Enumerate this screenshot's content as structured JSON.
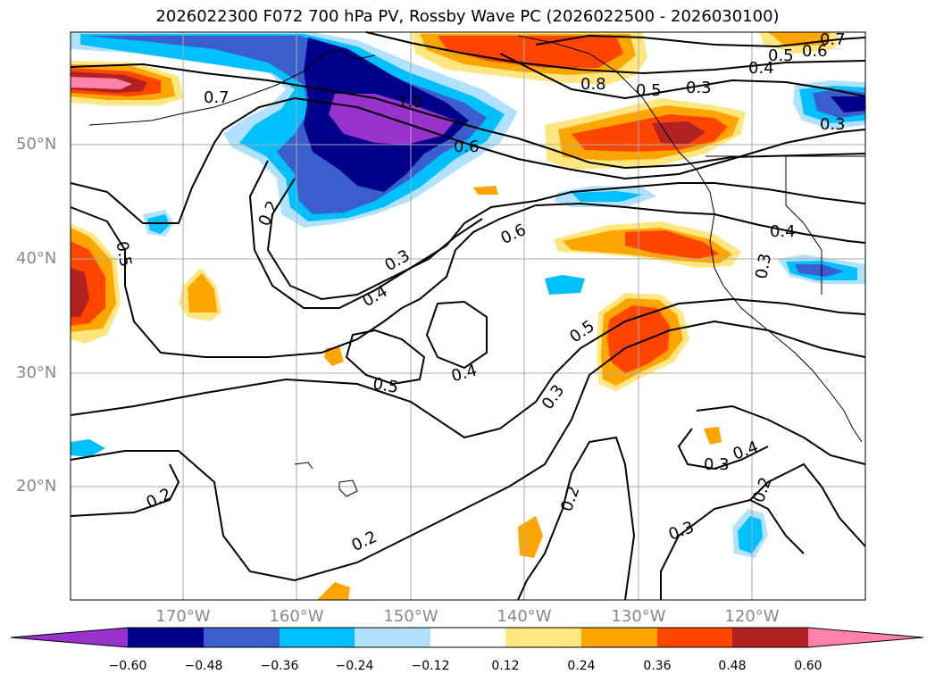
{
  "title": "2026022300 F072 700 hPa PV, Rossby Wave PC (2026022500 - 2026030100)",
  "lat_labels": [
    "50°N",
    "40°N",
    "30°N",
    "20°N"
  ],
  "lon_labels": [
    "170°W",
    "160°W",
    "150°W",
    "140°W",
    "130°W",
    "120°W"
  ],
  "contour_labels": [
    "0.7",
    "1.0",
    "0.6",
    "0.8",
    "0.5",
    "0.7",
    "0.6",
    "0.5",
    "0.4",
    "0.3",
    "0.3",
    "0.5",
    "0.2",
    "0.3",
    "0.4",
    "0.6",
    "0.4",
    "0.3",
    "0.5",
    "0.4",
    "0.5",
    "0.3",
    "0.3",
    "0.4",
    "0.2",
    "0.2",
    "0.2",
    "0.3",
    "0.2"
  ],
  "colorbar": {
    "ticks": [
      "−0.60",
      "−0.48",
      "−0.36",
      "−0.24",
      "−0.12",
      "0.12",
      "0.24",
      "0.36",
      "0.48",
      "0.60"
    ],
    "colors": [
      "#9932cc",
      "#00008b",
      "#3a5fcd",
      "#00bfff",
      "#b0e2ff",
      "#ffffff",
      "#ffe680",
      "#ffa500",
      "#ff4500",
      "#b22222",
      "#ff82ab"
    ]
  },
  "chart_data": {
    "type": "contour_map",
    "title": "2026022300 F072 700 hPa PV, Rossby Wave PC (2026022500 - 2026030100)",
    "extent": {
      "lon": [
        -180,
        -110
      ],
      "lat": [
        10,
        60
      ]
    },
    "filled_levels": [
      -0.6,
      -0.48,
      -0.36,
      -0.24,
      -0.12,
      0.12,
      0.24,
      0.36,
      0.48,
      0.6
    ],
    "contour_levels": [
      0.2,
      0.3,
      0.4,
      0.5,
      0.6,
      0.7,
      0.8,
      1.0
    ]
  }
}
